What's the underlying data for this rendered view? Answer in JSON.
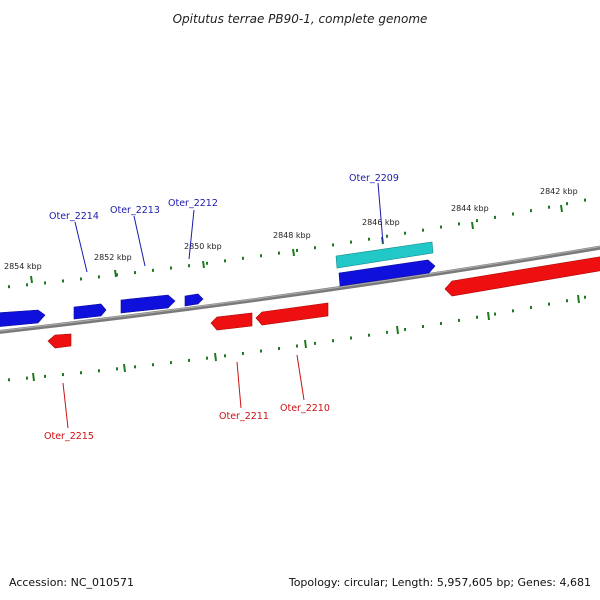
{
  "title": "Opitutus terrae PB90-1, complete genome",
  "footer": {
    "accession": "Accession: NC_010571",
    "summary": "Topology: circular; Length: 5,957,605 bp; Genes: 4,681"
  },
  "colors": {
    "forward_gene": "#1010dd",
    "reverse_gene": "#ee1010",
    "highlight_gene": "#22c8c8",
    "forward_label": "#1a1aaa",
    "reverse_label": "#cc1111",
    "tick": "#1e7a1e",
    "backbone": "#808080"
  },
  "ticks": [
    {
      "label": "2854 kbp"
    },
    {
      "label": "2852 kbp"
    },
    {
      "label": "2850 kbp"
    },
    {
      "label": "2848 kbp"
    },
    {
      "label": "2846 kbp"
    },
    {
      "label": "2844 kbp"
    },
    {
      "label": "2842 kbp"
    }
  ],
  "genes": [
    {
      "name": "Oter_2209",
      "strand": "forward"
    },
    {
      "name": "Oter_2210",
      "strand": "reverse"
    },
    {
      "name": "Oter_2211",
      "strand": "reverse"
    },
    {
      "name": "Oter_2212",
      "strand": "forward"
    },
    {
      "name": "Oter_2213",
      "strand": "forward"
    },
    {
      "name": "Oter_2214",
      "strand": "forward"
    },
    {
      "name": "Oter_2215",
      "strand": "reverse"
    }
  ]
}
